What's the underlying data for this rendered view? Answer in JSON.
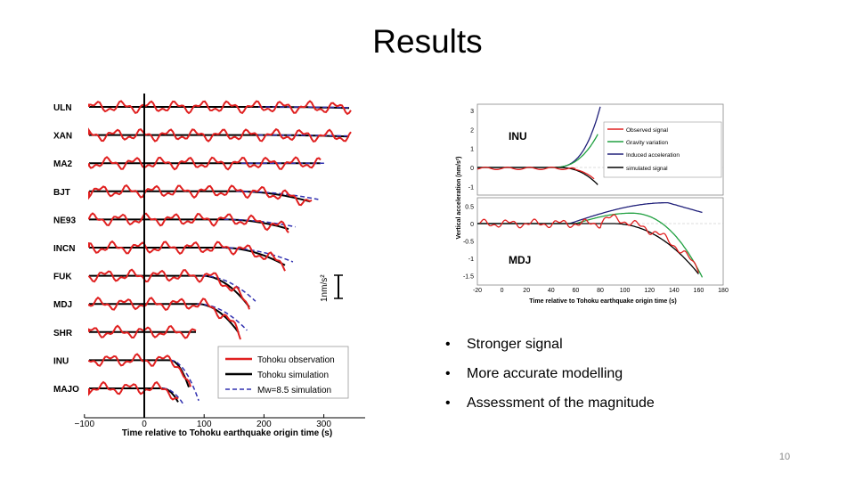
{
  "slide": {
    "title": "Results",
    "page_number": "10",
    "bullets": [
      "Stronger signal",
      "More accurate modelling",
      "Assessment of the magnitude"
    ]
  },
  "chart_data": [
    {
      "type": "line",
      "xlabel": "Time relative to Tohoku earthquake origin time (s)",
      "xticks": [
        "−100",
        "0",
        "100",
        "200",
        "300"
      ],
      "xlim": [
        -100,
        350
      ],
      "stations": [
        "ULN",
        "XAN",
        "MA2",
        "BJT",
        "NE93",
        "INCN",
        "FUK",
        "MDJ",
        "SHR",
        "INU",
        "MAJO"
      ],
      "legend": [
        "Tohoku observation",
        "Tohoku simulation",
        "Mw=8.5 simulation"
      ],
      "scale_label": "1nm/s²",
      "colors": {
        "observation": "#e02020",
        "simulation": "#000000",
        "mw85": "#3030b0"
      }
    },
    {
      "type": "line",
      "panels": [
        "INU",
        "MDJ"
      ],
      "ylabel": "Vertical acceleration (nm/s²)",
      "xlabel": "Time relative to Tohoku earthquake origin time (s)",
      "xticks": [
        "-20",
        "0",
        "20",
        "40",
        "60",
        "80",
        "100",
        "120",
        "140",
        "160",
        "180"
      ],
      "yticks_top": [
        "3",
        "2",
        "1",
        "0",
        "-1"
      ],
      "yticks_bottom": [
        "0.5",
        "0",
        "-0.5",
        "-1",
        "-1.5"
      ],
      "legend": [
        "Observed signal",
        "Gravity variation",
        "Induced acceleration",
        "simulated signal"
      ],
      "colors": {
        "observed": "#e02020",
        "gravity": "#20a040",
        "induced": "#20207a",
        "simulated": "#000000"
      }
    }
  ]
}
